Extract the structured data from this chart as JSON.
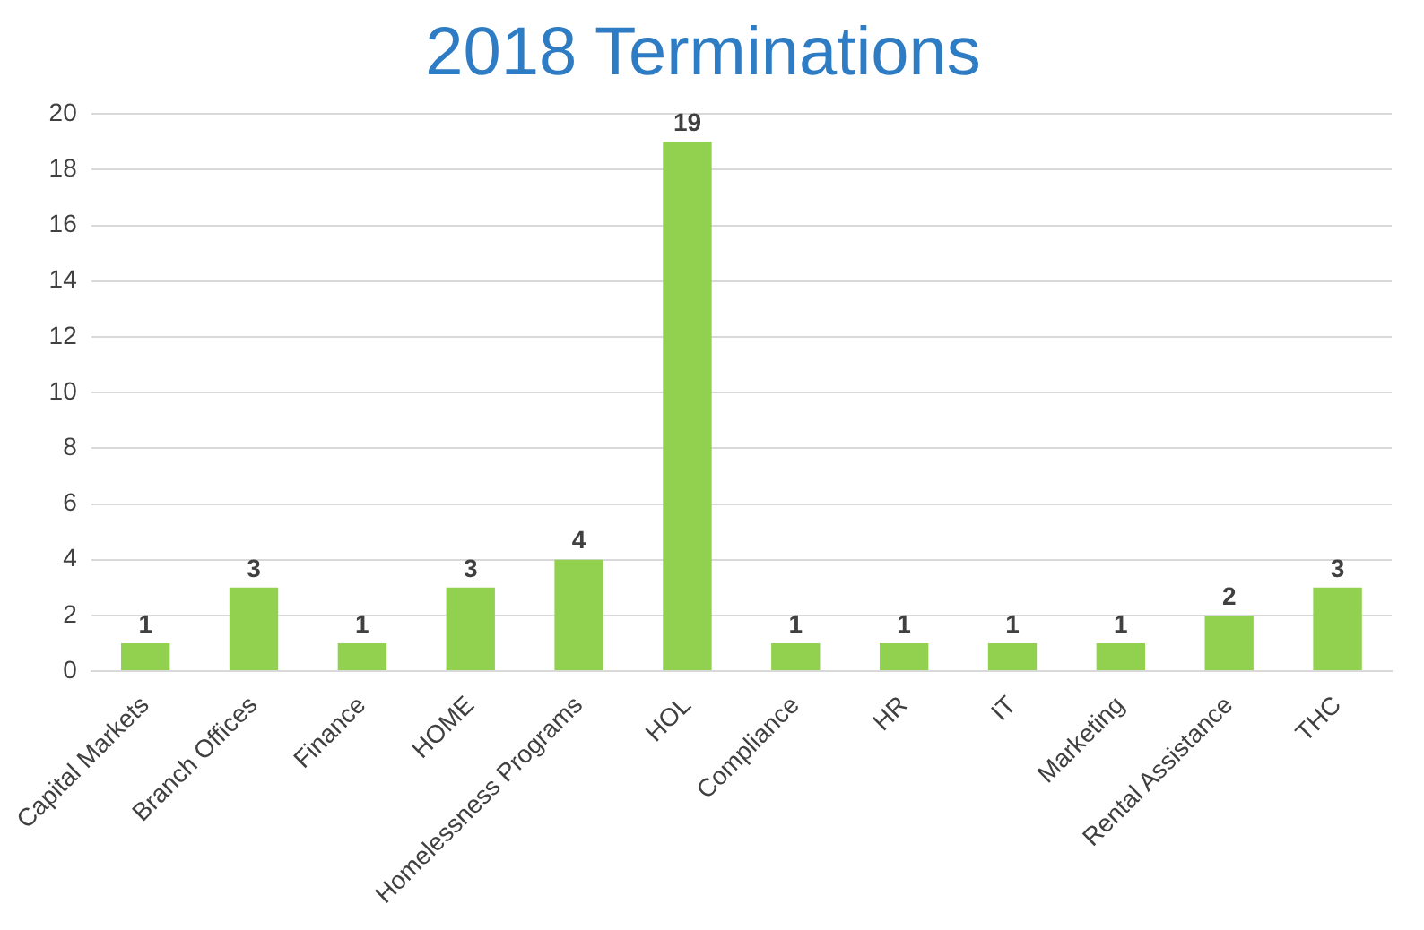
{
  "chart_data": {
    "type": "bar",
    "title": "2018 Terminations",
    "categories": [
      "Capital Markets",
      "Branch Offices",
      "Finance",
      "HOME",
      "Homelessness Programs",
      "HOL",
      "Compliance",
      "HR",
      "IT",
      "Marketing",
      "Rental Assistance",
      "THC"
    ],
    "values": [
      1,
      3,
      1,
      3,
      4,
      19,
      1,
      1,
      1,
      1,
      2,
      3
    ],
    "color": "#92d050",
    "ylim": [
      0,
      20
    ],
    "yticks": [
      0,
      2,
      4,
      6,
      8,
      10,
      12,
      14,
      16,
      18,
      20
    ],
    "grid": "y",
    "legend": false,
    "data_labels": true
  }
}
